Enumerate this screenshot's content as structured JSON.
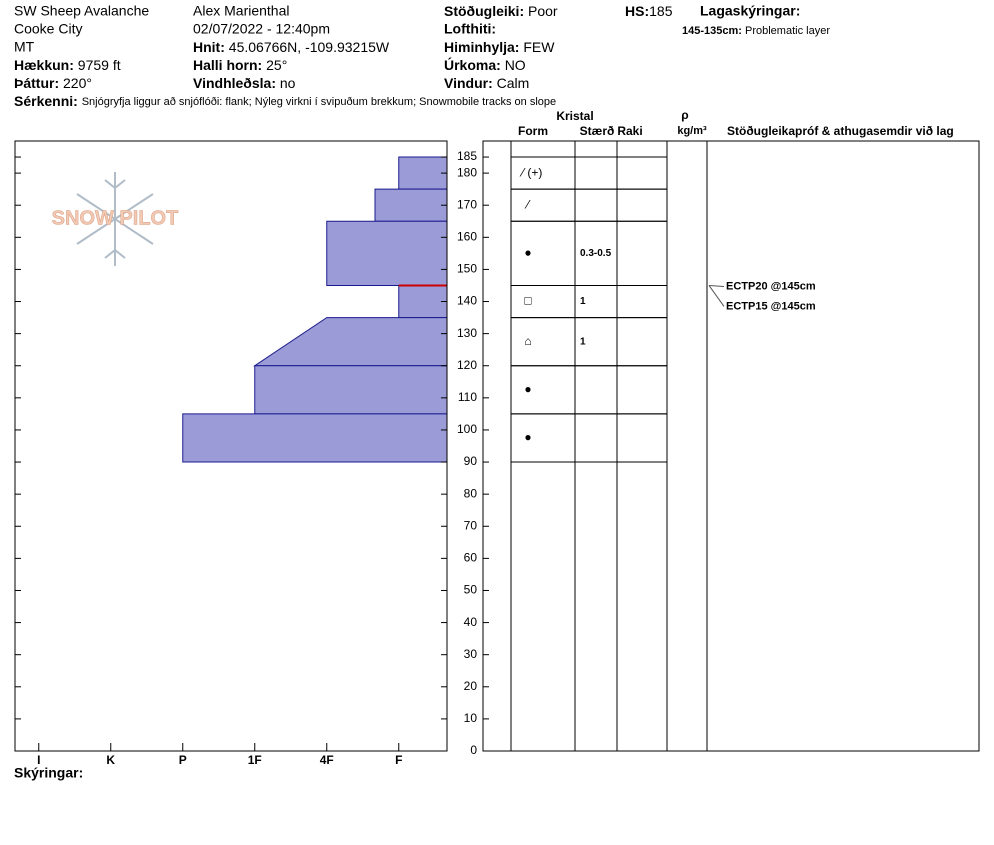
{
  "header": {
    "location": "SW Sheep Avalanche",
    "area": "Cooke City",
    "state": "MT",
    "elevation_label": "Hækkun:",
    "elevation": "9759 ft",
    "aspect_label": "Þáttur:",
    "aspect": "220°",
    "observer": "Alex Marienthal",
    "datetime": "02/07/2022 - 12:40pm",
    "coords_label": "Hnit:",
    "coords": "45.06766N, -109.93215W",
    "slope_label": "Halli horn:",
    "slope": "25°",
    "wind_loading_label": "Vindhleðsla:",
    "wind_loading": "no",
    "stability_label": "Stöðugleiki:",
    "stability": "Poor",
    "air_temp_label": "Lofthiti:",
    "sky_label": "Himinhylja:",
    "sky": "FEW",
    "precip_label": "Úrkoma:",
    "precip": "NO",
    "wind_label": "Vindur:",
    "wind": "Calm",
    "hs_label": "HS:",
    "hs": 185,
    "layer_notes_label": "Lagaskýringar:",
    "layer_note_range": "145-135cm:",
    "layer_note": "Problematic layer",
    "features_label": "Sérkenni:",
    "features": "Snjógryfja liggur að snjóflóði: flank; Nýleg virkni í svipuðum brekkum; Snowmobile tracks on slope",
    "logo": "SNOW PILOT"
  },
  "chart_data": {
    "type": "snowpit",
    "xlim": [
      6.33,
      0.33
    ],
    "hardness_categories": [
      {
        "value": 6,
        "label": "I"
      },
      {
        "value": 5,
        "label": "K"
      },
      {
        "value": 4,
        "label": "P"
      },
      {
        "value": 3,
        "label": "1F"
      },
      {
        "value": 2,
        "label": "4F"
      },
      {
        "value": 1,
        "label": "F"
      }
    ],
    "ylim": [
      0,
      190
    ],
    "yticks": [
      0,
      10,
      20,
      30,
      40,
      50,
      60,
      70,
      80,
      90,
      100,
      110,
      120,
      130,
      140,
      150,
      160,
      170,
      180,
      185
    ],
    "color": "#9b9bd8",
    "problem_layer": 145,
    "problem_color": "#cc0000",
    "layers": [
      {
        "top": 185,
        "bottom": 175,
        "hardness_top": 1,
        "hardness_bottom": 1,
        "form": "⁄ (+)"
      },
      {
        "top": 175,
        "bottom": 165,
        "hardness_top": 1.33,
        "hardness_bottom": 1.33,
        "form": "⁄"
      },
      {
        "top": 165,
        "bottom": 145,
        "hardness_top": 2,
        "hardness_bottom": 2,
        "form": "●",
        "size": "0.3-0.5"
      },
      {
        "top": 145,
        "bottom": 135,
        "hardness_top": 1,
        "hardness_bottom": 1,
        "form": "□",
        "size": "1"
      },
      {
        "top": 135,
        "bottom": 120,
        "hardness_top": 2,
        "hardness_bottom": 3,
        "form": "⌂",
        "size": "1"
      },
      {
        "top": 120,
        "bottom": 105,
        "hardness_top": 3,
        "hardness_bottom": 3,
        "form": "●"
      },
      {
        "top": 105,
        "bottom": 90,
        "hardness_top": 4,
        "hardness_bottom": 4,
        "form": "●"
      }
    ],
    "tests": [
      {
        "label": "ECTP20 @145cm",
        "depth": 145
      },
      {
        "label": "ECTP15 @145cm",
        "depth": 145
      }
    ],
    "columns": {
      "crystal": "Kristal",
      "form": "Form",
      "size": "Stærð",
      "moisture": "Raki",
      "density": "ρ",
      "density_unit": "kg/m³",
      "comments": "Stöðugleikapróf & athugasemdir við lag"
    },
    "footer": "Skýringar:"
  }
}
